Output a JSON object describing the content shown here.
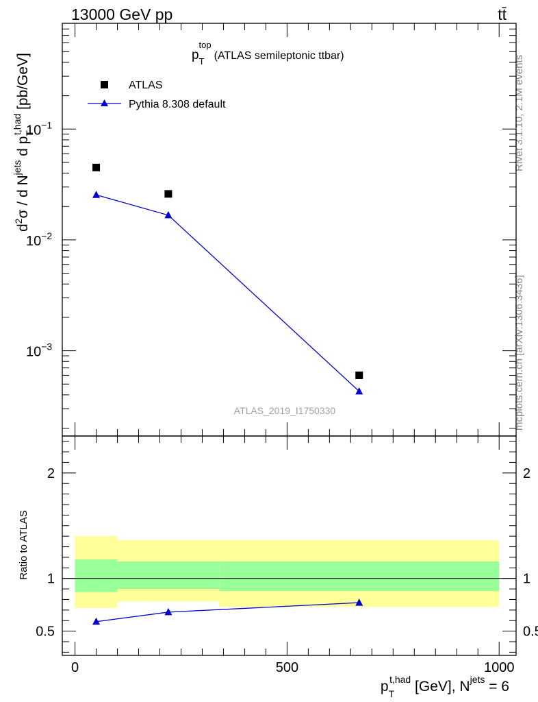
{
  "header": {
    "left": "13000 GeV pp",
    "right": "tt̄"
  },
  "side_text": {
    "rivet": "Rivet 3.1.10,  2.1M events",
    "mcplots": "mcplots.cern.ch [arXiv:1306.3436]"
  },
  "chart_data": [
    {
      "type": "scatter",
      "title": "p_T^top (ATLAS semileptonic ttbar)",
      "title_parts": {
        "main": "p",
        "sub": "T",
        "sup": "top",
        "rest": "(ATLAS semileptonic ttbar)"
      },
      "analysis_label": "ATLAS_2019_I1750330",
      "ylabel": "d²σ / d N^jets d p_T^t,had [pb/GeV]",
      "yscale": "log",
      "ylim": [
        0.00017,
        0.9
      ],
      "xlim": [
        -30,
        1040
      ],
      "y_ticks": [
        {
          "value": 0.1,
          "label": "10",
          "exp": "−1"
        },
        {
          "value": 0.01,
          "label": "10",
          "exp": "−2"
        },
        {
          "value": 0.001,
          "label": "10",
          "exp": "−3"
        }
      ],
      "legend_position": "top-left",
      "series": [
        {
          "name": "ATLAS",
          "marker": "square",
          "color": "#000000",
          "x": [
            50,
            220,
            670
          ],
          "y": [
            0.045,
            0.026,
            0.0006
          ]
        },
        {
          "name": "Pythia 8.308 default",
          "marker": "triangle",
          "color": "#0000cc",
          "x": [
            50,
            220,
            670
          ],
          "y": [
            0.0255,
            0.0167,
            0.00043
          ]
        }
      ]
    },
    {
      "type": "line",
      "ylabel": "Ratio to ATLAS",
      "xlabel": "p_T^t,had [GeV], N^jets = 6",
      "xlim": [
        -30,
        1040
      ],
      "ylim": [
        0.27,
        2.35
      ],
      "x_ticks": [
        0,
        500,
        1000
      ],
      "y_ticks": [
        0.5,
        1,
        2
      ],
      "bins": [
        0,
        100,
        340,
        1000
      ],
      "band_yellow": [
        [
          0.72,
          1.4
        ],
        [
          0.78,
          1.36
        ],
        [
          0.73,
          1.36
        ]
      ],
      "band_green": [
        [
          0.87,
          1.18
        ],
        [
          0.9,
          1.16
        ],
        [
          0.88,
          1.16
        ]
      ],
      "reference": 1,
      "series": [
        {
          "name": "Pythia 8.308 default",
          "color": "#0000cc",
          "x": [
            50,
            220,
            670
          ],
          "y": [
            0.59,
            0.68,
            0.77
          ],
          "yerr": [
            0,
            0,
            0.025
          ]
        }
      ]
    }
  ]
}
